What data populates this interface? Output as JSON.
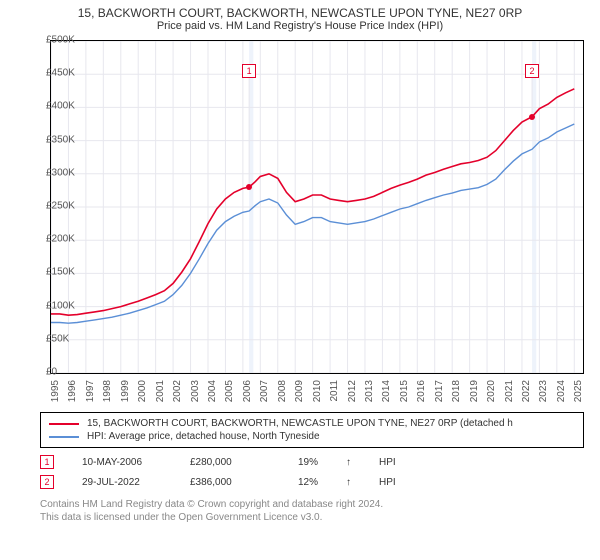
{
  "title_line1": "15, BACKWORTH COURT, BACKWORTH, NEWCASTLE UPON TYNE, NE27 0RP",
  "title_line2": "Price paid vs. HM Land Registry's House Price Index (HPI)",
  "chart": {
    "type": "line",
    "background_color": "#ffffff",
    "grid_color": "#e7e7ee",
    "grid_minor_color": "#f2f2f6",
    "axis_color": "#000000",
    "tick_font_size": 10,
    "x": {
      "min": 1995,
      "max": 2025.5,
      "major_step": 1,
      "labels_transform": "rotate-90"
    },
    "y": {
      "min": 0,
      "max": 500000,
      "major_step": 50000,
      "prefix": "£",
      "k_suffix": true
    },
    "highlight_bands": [
      {
        "from": 2006.36,
        "to": 2006.6,
        "color": "#eef3fb"
      },
      {
        "from": 2022.58,
        "to": 2022.82,
        "color": "#eef3fb"
      }
    ],
    "series": [
      {
        "id": "subject",
        "label": "15, BACKWORTH COURT, BACKWORTH, NEWCASTLE UPON TYNE, NE27 0RP (detached h",
        "color": "#e4002b",
        "line_width": 1.6,
        "points": [
          [
            1995.0,
            89000
          ],
          [
            1995.5,
            89000
          ],
          [
            1996.0,
            87000
          ],
          [
            1996.5,
            88000
          ],
          [
            1997.0,
            90000
          ],
          [
            1997.5,
            92000
          ],
          [
            1998.0,
            94000
          ],
          [
            1998.5,
            97000
          ],
          [
            1999.0,
            100000
          ],
          [
            1999.5,
            104000
          ],
          [
            2000.0,
            108000
          ],
          [
            2000.5,
            113000
          ],
          [
            2001.0,
            118000
          ],
          [
            2001.5,
            124000
          ],
          [
            2002.0,
            135000
          ],
          [
            2002.5,
            152000
          ],
          [
            2003.0,
            172000
          ],
          [
            2003.5,
            198000
          ],
          [
            2004.0,
            225000
          ],
          [
            2004.5,
            247000
          ],
          [
            2005.0,
            262000
          ],
          [
            2005.5,
            272000
          ],
          [
            2006.0,
            278000
          ],
          [
            2006.36,
            280000
          ],
          [
            2006.7,
            288000
          ],
          [
            2007.0,
            296000
          ],
          [
            2007.5,
            300000
          ],
          [
            2008.0,
            293000
          ],
          [
            2008.5,
            272000
          ],
          [
            2009.0,
            258000
          ],
          [
            2009.5,
            262000
          ],
          [
            2010.0,
            268000
          ],
          [
            2010.5,
            268000
          ],
          [
            2011.0,
            262000
          ],
          [
            2011.5,
            260000
          ],
          [
            2012.0,
            258000
          ],
          [
            2012.5,
            260000
          ],
          [
            2013.0,
            262000
          ],
          [
            2013.5,
            266000
          ],
          [
            2014.0,
            272000
          ],
          [
            2014.5,
            278000
          ],
          [
            2015.0,
            283000
          ],
          [
            2015.5,
            287000
          ],
          [
            2016.0,
            292000
          ],
          [
            2016.5,
            298000
          ],
          [
            2017.0,
            302000
          ],
          [
            2017.5,
            307000
          ],
          [
            2018.0,
            311000
          ],
          [
            2018.5,
            315000
          ],
          [
            2019.0,
            317000
          ],
          [
            2019.5,
            320000
          ],
          [
            2020.0,
            325000
          ],
          [
            2020.5,
            335000
          ],
          [
            2021.0,
            350000
          ],
          [
            2021.5,
            365000
          ],
          [
            2022.0,
            378000
          ],
          [
            2022.58,
            386000
          ],
          [
            2023.0,
            398000
          ],
          [
            2023.5,
            405000
          ],
          [
            2024.0,
            415000
          ],
          [
            2024.5,
            422000
          ],
          [
            2025.0,
            428000
          ]
        ]
      },
      {
        "id": "hpi",
        "label": "HPI: Average price, detached house, North Tyneside",
        "color": "#5b8fd6",
        "line_width": 1.4,
        "points": [
          [
            1995.0,
            76000
          ],
          [
            1995.5,
            76000
          ],
          [
            1996.0,
            75000
          ],
          [
            1996.5,
            76000
          ],
          [
            1997.0,
            78000
          ],
          [
            1997.5,
            80000
          ],
          [
            1998.0,
            82000
          ],
          [
            1998.5,
            84000
          ],
          [
            1999.0,
            87000
          ],
          [
            1999.5,
            90000
          ],
          [
            2000.0,
            94000
          ],
          [
            2000.5,
            98000
          ],
          [
            2001.0,
            103000
          ],
          [
            2001.5,
            108000
          ],
          [
            2002.0,
            118000
          ],
          [
            2002.5,
            132000
          ],
          [
            2003.0,
            150000
          ],
          [
            2003.5,
            172000
          ],
          [
            2004.0,
            195000
          ],
          [
            2004.5,
            215000
          ],
          [
            2005.0,
            228000
          ],
          [
            2005.5,
            236000
          ],
          [
            2006.0,
            242000
          ],
          [
            2006.36,
            244000
          ],
          [
            2006.7,
            252000
          ],
          [
            2007.0,
            258000
          ],
          [
            2007.5,
            262000
          ],
          [
            2008.0,
            256000
          ],
          [
            2008.5,
            238000
          ],
          [
            2009.0,
            224000
          ],
          [
            2009.5,
            228000
          ],
          [
            2010.0,
            234000
          ],
          [
            2010.5,
            234000
          ],
          [
            2011.0,
            228000
          ],
          [
            2011.5,
            226000
          ],
          [
            2012.0,
            224000
          ],
          [
            2012.5,
            226000
          ],
          [
            2013.0,
            228000
          ],
          [
            2013.5,
            232000
          ],
          [
            2014.0,
            237000
          ],
          [
            2014.5,
            242000
          ],
          [
            2015.0,
            247000
          ],
          [
            2015.5,
            250000
          ],
          [
            2016.0,
            255000
          ],
          [
            2016.5,
            260000
          ],
          [
            2017.0,
            264000
          ],
          [
            2017.5,
            268000
          ],
          [
            2018.0,
            271000
          ],
          [
            2018.5,
            275000
          ],
          [
            2019.0,
            277000
          ],
          [
            2019.5,
            279000
          ],
          [
            2020.0,
            284000
          ],
          [
            2020.5,
            292000
          ],
          [
            2021.0,
            306000
          ],
          [
            2021.5,
            319000
          ],
          [
            2022.0,
            330000
          ],
          [
            2022.58,
            337000
          ],
          [
            2023.0,
            348000
          ],
          [
            2023.5,
            354000
          ],
          [
            2024.0,
            363000
          ],
          [
            2024.5,
            369000
          ],
          [
            2025.0,
            375000
          ]
        ]
      }
    ],
    "markers": [
      {
        "n": "1",
        "x": 2006.36,
        "box_y": 455000,
        "dot_y": 280000,
        "dot_color": "#e4002b"
      },
      {
        "n": "2",
        "x": 2022.58,
        "box_y": 455000,
        "dot_y": 386000,
        "dot_color": "#e4002b"
      }
    ]
  },
  "legend": {
    "rows": [
      {
        "color": "#e4002b",
        "text": "15, BACKWORTH COURT, BACKWORTH, NEWCASTLE UPON TYNE, NE27 0RP (detached h"
      },
      {
        "color": "#5b8fd6",
        "text": "HPI: Average price, detached house, North Tyneside"
      }
    ]
  },
  "sales": {
    "arrow": "↑",
    "hpi_label": "HPI",
    "rows": [
      {
        "n": "1",
        "date": "10-MAY-2006",
        "price": "£280,000",
        "pct": "19%"
      },
      {
        "n": "2",
        "date": "29-JUL-2022",
        "price": "£386,000",
        "pct": "12%"
      }
    ]
  },
  "footer": {
    "line1": "Contains HM Land Registry data © Crown copyright and database right 2024.",
    "line2": "This data is licensed under the Open Government Licence v3.0."
  }
}
